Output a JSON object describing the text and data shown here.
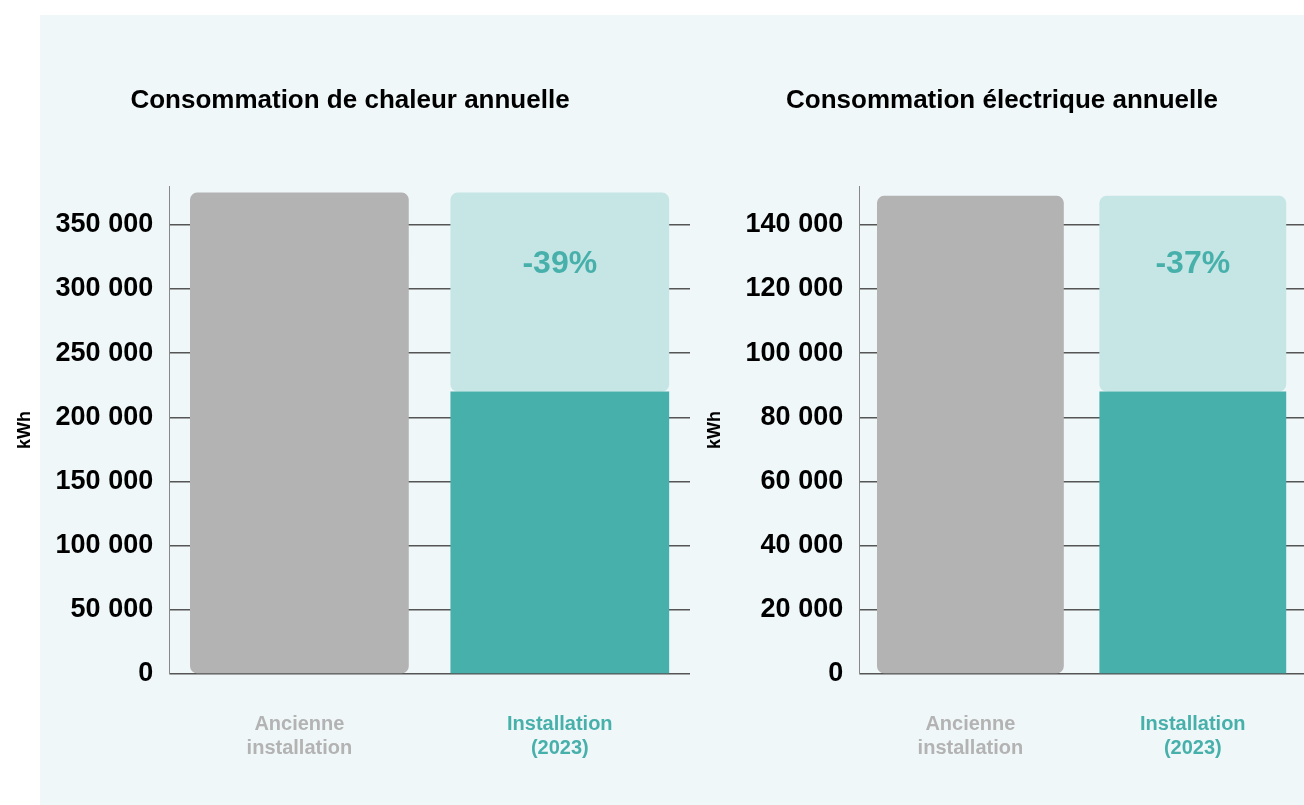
{
  "chart_data": [
    {
      "type": "bar",
      "stacked": true,
      "title": "Consommation de chaleur annuelle",
      "ylabel": "kWh",
      "categories": [
        "Ancienne installation",
        "Installation (2023)"
      ],
      "series": [
        {
          "values": [
            375000,
            220000
          ],
          "colors": [
            "#b3b3b3",
            "#48b0ab"
          ]
        },
        {
          "values": [
            null,
            155000
          ],
          "colors": [
            "#c6e6e6",
            "#c6e6e6"
          ]
        }
      ],
      "ylim": [
        0,
        380000
      ],
      "yticks": [
        {
          "value": 0,
          "label": "0"
        },
        {
          "value": 50000,
          "label": "50 000"
        },
        {
          "value": 100000,
          "label": "100 000"
        },
        {
          "value": 150000,
          "label": "150 000"
        },
        {
          "value": 200000,
          "label": "200 000"
        },
        {
          "value": 250000,
          "label": "250 000"
        },
        {
          "value": 300000,
          "label": "300 000"
        },
        {
          "value": 350000,
          "label": "350 000"
        }
      ],
      "grid": "y",
      "annotations": [
        "-39%"
      ]
    },
    {
      "type": "bar",
      "stacked": true,
      "title": "Consommation électrique annuelle",
      "ylabel": "kWh",
      "categories": [
        "Ancienne installation",
        "Installation (2023)"
      ],
      "series": [
        {
          "values": [
            149000,
            88000
          ],
          "colors": [
            "#b3b3b3",
            "#48b0ab"
          ]
        },
        {
          "values": [
            null,
            61000
          ],
          "colors": [
            "#c6e6e6",
            "#c6e6e6"
          ]
        }
      ],
      "ylim": [
        0,
        152000
      ],
      "yticks": [
        {
          "value": 0,
          "label": "0"
        },
        {
          "value": 20000,
          "label": "20 000"
        },
        {
          "value": 40000,
          "label": "40 000"
        },
        {
          "value": 60000,
          "label": "60 000"
        },
        {
          "value": 80000,
          "label": "80 000"
        },
        {
          "value": 100000,
          "label": "100 000"
        },
        {
          "value": 120000,
          "label": "120 000"
        },
        {
          "value": 140000,
          "label": "140 000"
        }
      ],
      "grid": "y",
      "annotations": [
        "-37%"
      ]
    }
  ]
}
